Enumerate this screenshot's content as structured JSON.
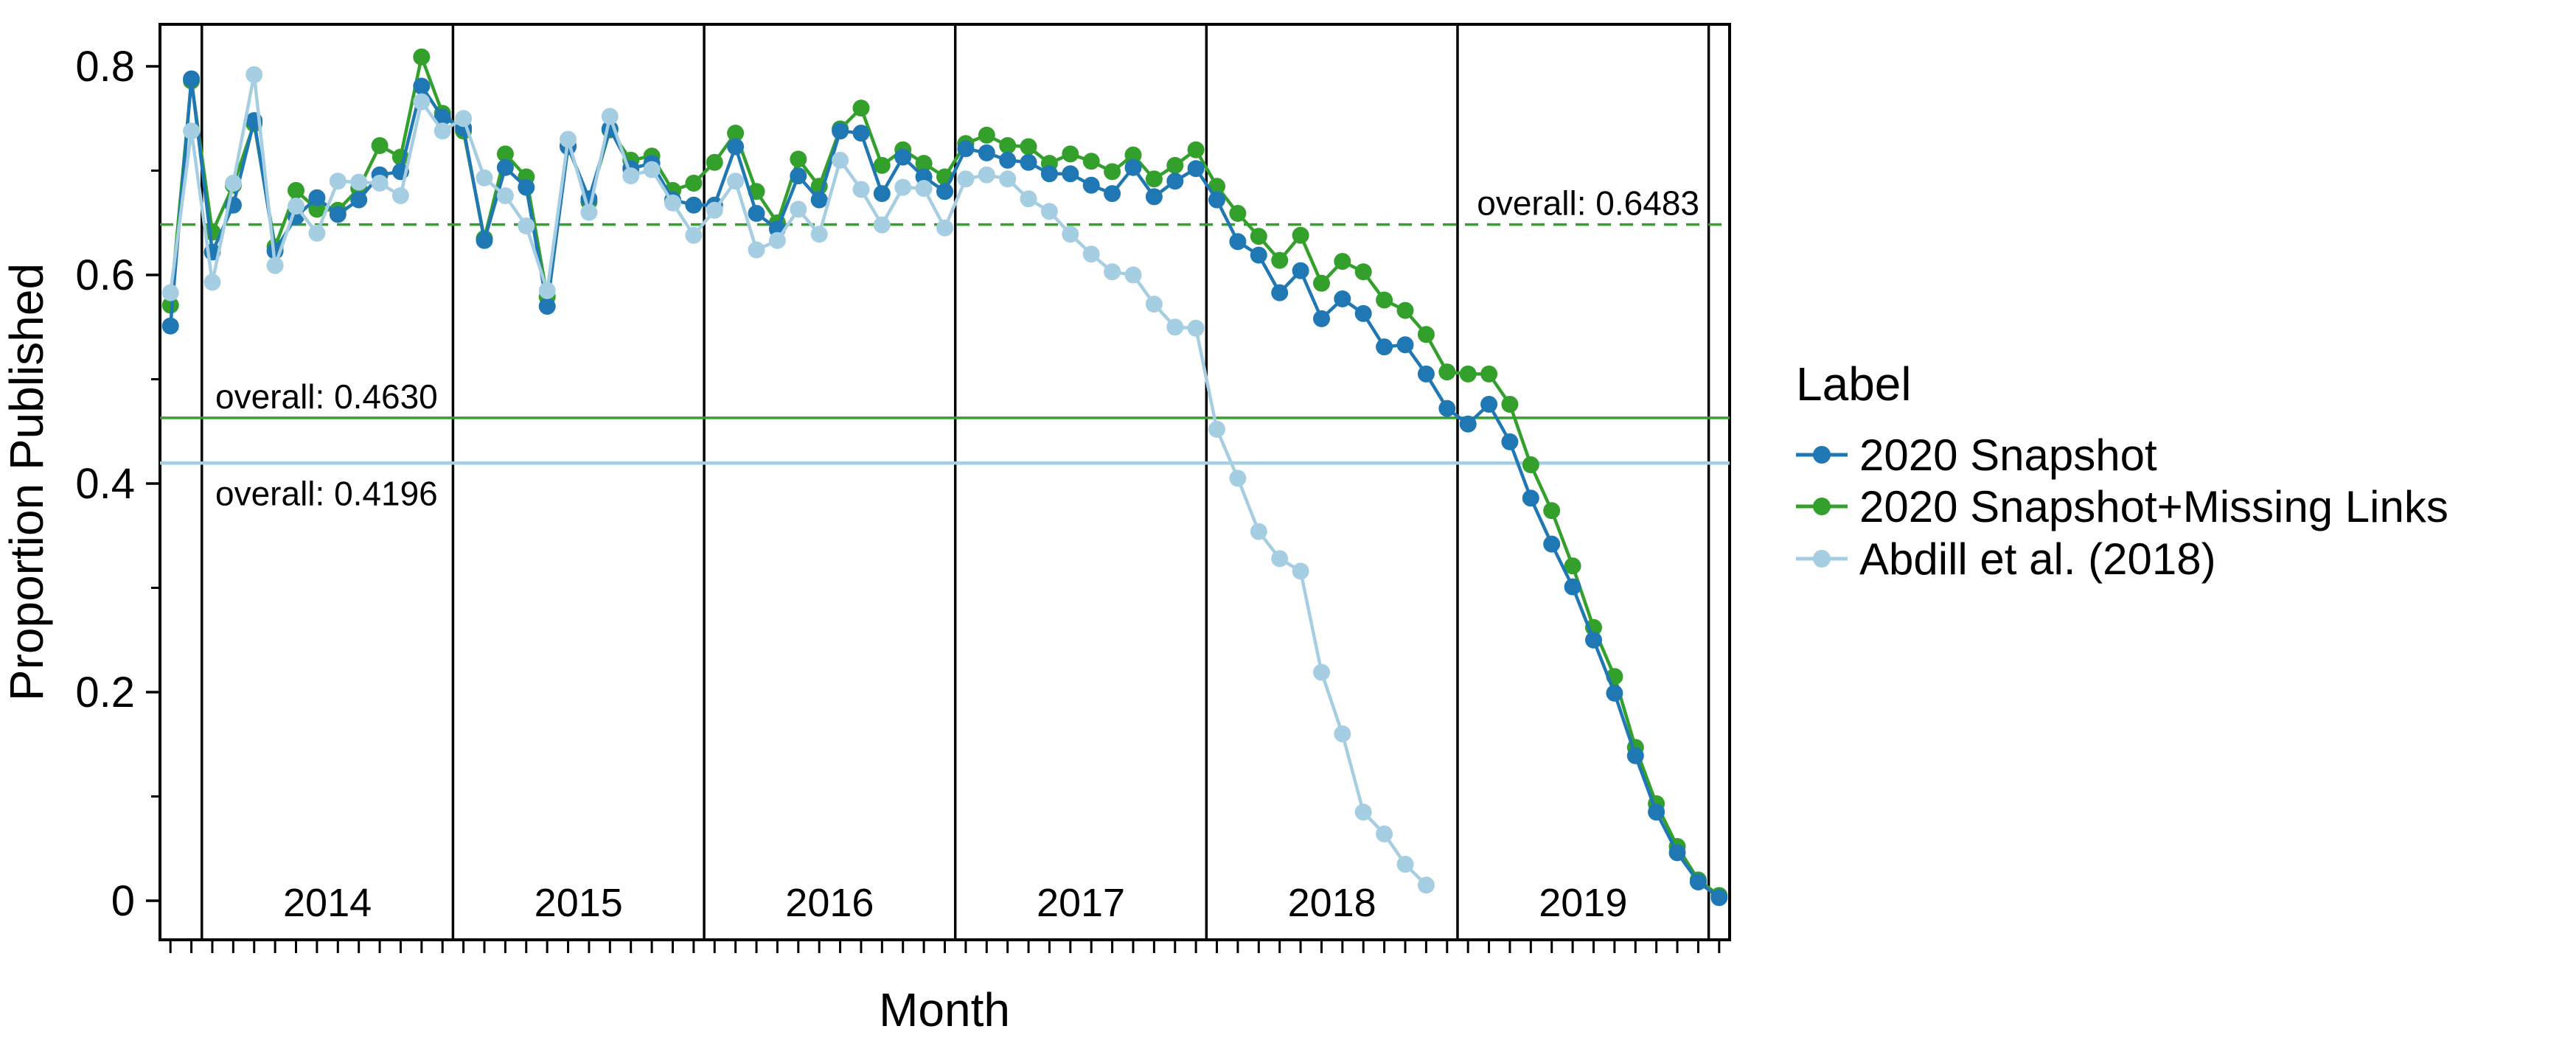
{
  "chart_data": {
    "type": "line",
    "title": "",
    "xlabel": "Month",
    "ylabel": "Proportion Published",
    "ylim": [
      0,
      0.84
    ],
    "yticks": [
      0,
      0.2,
      0.4,
      0.6,
      0.8
    ],
    "ytick_labels": [
      "0",
      "0.2",
      "0.4",
      "0.6",
      "0.8"
    ],
    "yminor_ticks": [
      0.1,
      0.3,
      0.5,
      0.7
    ],
    "grid": "off",
    "panel_border_color": "#000000",
    "year_sections": [
      "2014",
      "2015",
      "2016",
      "2017",
      "2018",
      "2019"
    ],
    "months": [
      "2013-11",
      "2013-12",
      "2014-01",
      "2014-02",
      "2014-03",
      "2014-04",
      "2014-05",
      "2014-06",
      "2014-07",
      "2014-08",
      "2014-09",
      "2014-10",
      "2014-11",
      "2014-12",
      "2015-01",
      "2015-02",
      "2015-03",
      "2015-04",
      "2015-05",
      "2015-06",
      "2015-07",
      "2015-08",
      "2015-09",
      "2015-10",
      "2015-11",
      "2015-12",
      "2016-01",
      "2016-02",
      "2016-03",
      "2016-04",
      "2016-05",
      "2016-06",
      "2016-07",
      "2016-08",
      "2016-09",
      "2016-10",
      "2016-11",
      "2016-12",
      "2017-01",
      "2017-02",
      "2017-03",
      "2017-04",
      "2017-05",
      "2017-06",
      "2017-07",
      "2017-08",
      "2017-09",
      "2017-10",
      "2017-11",
      "2017-12",
      "2018-01",
      "2018-02",
      "2018-03",
      "2018-04",
      "2018-05",
      "2018-06",
      "2018-07",
      "2018-08",
      "2018-09",
      "2018-10",
      "2018-11",
      "2018-12",
      "2019-01",
      "2019-02",
      "2019-03",
      "2019-04",
      "2019-05",
      "2019-06",
      "2019-07",
      "2019-08",
      "2019-09",
      "2019-10",
      "2019-11",
      "2019-12",
      "2020-01"
    ],
    "series": [
      {
        "name": "2020 Snapshot",
        "color": "#1f78b4",
        "values": [
          0.551,
          0.788,
          0.622,
          0.667,
          0.748,
          0.623,
          0.656,
          0.674,
          0.658,
          0.672,
          0.696,
          0.699,
          0.781,
          0.751,
          0.741,
          0.633,
          0.703,
          0.684,
          0.57,
          0.723,
          0.673,
          0.74,
          0.702,
          0.707,
          0.672,
          0.667,
          0.667,
          0.723,
          0.659,
          0.644,
          0.695,
          0.672,
          0.738,
          0.736,
          0.678,
          0.713,
          0.694,
          0.68,
          0.721,
          0.717,
          0.71,
          0.708,
          0.697,
          0.697,
          0.686,
          0.678,
          0.703,
          0.675,
          0.69,
          0.702,
          0.672,
          0.632,
          0.619,
          0.583,
          0.604,
          0.558,
          0.577,
          0.563,
          0.531,
          0.533,
          0.505,
          0.472,
          0.457,
          0.476,
          0.44,
          0.386,
          0.342,
          0.301,
          0.25,
          0.199,
          0.139,
          0.085,
          0.046,
          0.018,
          0.003
        ]
      },
      {
        "name": "2020 Snapshot+Missing Links",
        "color": "#33a02c",
        "values": [
          0.571,
          0.786,
          0.641,
          0.686,
          0.745,
          0.627,
          0.681,
          0.663,
          0.662,
          0.683,
          0.724,
          0.713,
          0.809,
          0.755,
          0.738,
          0.635,
          0.716,
          0.694,
          0.579,
          0.724,
          0.67,
          0.739,
          0.71,
          0.714,
          0.681,
          0.688,
          0.708,
          0.736,
          0.68,
          0.65,
          0.711,
          0.685,
          0.74,
          0.76,
          0.705,
          0.72,
          0.707,
          0.694,
          0.726,
          0.734,
          0.724,
          0.723,
          0.707,
          0.716,
          0.709,
          0.699,
          0.715,
          0.692,
          0.705,
          0.72,
          0.685,
          0.659,
          0.637,
          0.614,
          0.638,
          0.592,
          0.613,
          0.603,
          0.576,
          0.566,
          0.543,
          0.507,
          0.505,
          0.505,
          0.476,
          0.418,
          0.374,
          0.321,
          0.262,
          0.215,
          0.147,
          0.093,
          0.052,
          0.02,
          0.005
        ]
      },
      {
        "name": "Abdill et al. (2018)",
        "color": "#a6cee3",
        "values": [
          0.583,
          0.738,
          0.593,
          0.688,
          0.792,
          0.609,
          0.666,
          0.64,
          0.69,
          0.689,
          0.688,
          0.676,
          0.766,
          0.738,
          0.75,
          0.693,
          0.676,
          0.647,
          0.585,
          0.73,
          0.66,
          0.752,
          0.695,
          0.701,
          0.669,
          0.638,
          0.662,
          0.69,
          0.624,
          0.633,
          0.663,
          0.639,
          0.71,
          0.682,
          0.648,
          0.684,
          0.683,
          0.645,
          0.692,
          0.696,
          0.692,
          0.673,
          0.661,
          0.639,
          0.62,
          0.603,
          0.6,
          0.572,
          0.55,
          0.549,
          0.452,
          0.405,
          0.354,
          0.328,
          0.316,
          0.219,
          0.16,
          0.085,
          0.064,
          0.035,
          0.015,
          null,
          null,
          null,
          null,
          null,
          null,
          null,
          null,
          null,
          null,
          null,
          null,
          null,
          null
        ]
      }
    ],
    "ref_lines": [
      {
        "label": "overall: 0.6483",
        "value": 0.6483,
        "color": "#33a02c",
        "style": "dashed",
        "label_anchor": "right-above"
      },
      {
        "label": "overall: 0.4630",
        "value": 0.463,
        "color": "#33a02c",
        "style": "solid",
        "label_anchor": "left-above"
      },
      {
        "label": "overall: 0.4196",
        "value": 0.4196,
        "color": "#a6cee3",
        "style": "solid",
        "label_anchor": "left-below"
      }
    ],
    "legend": {
      "title": "Label",
      "position": "right"
    }
  }
}
